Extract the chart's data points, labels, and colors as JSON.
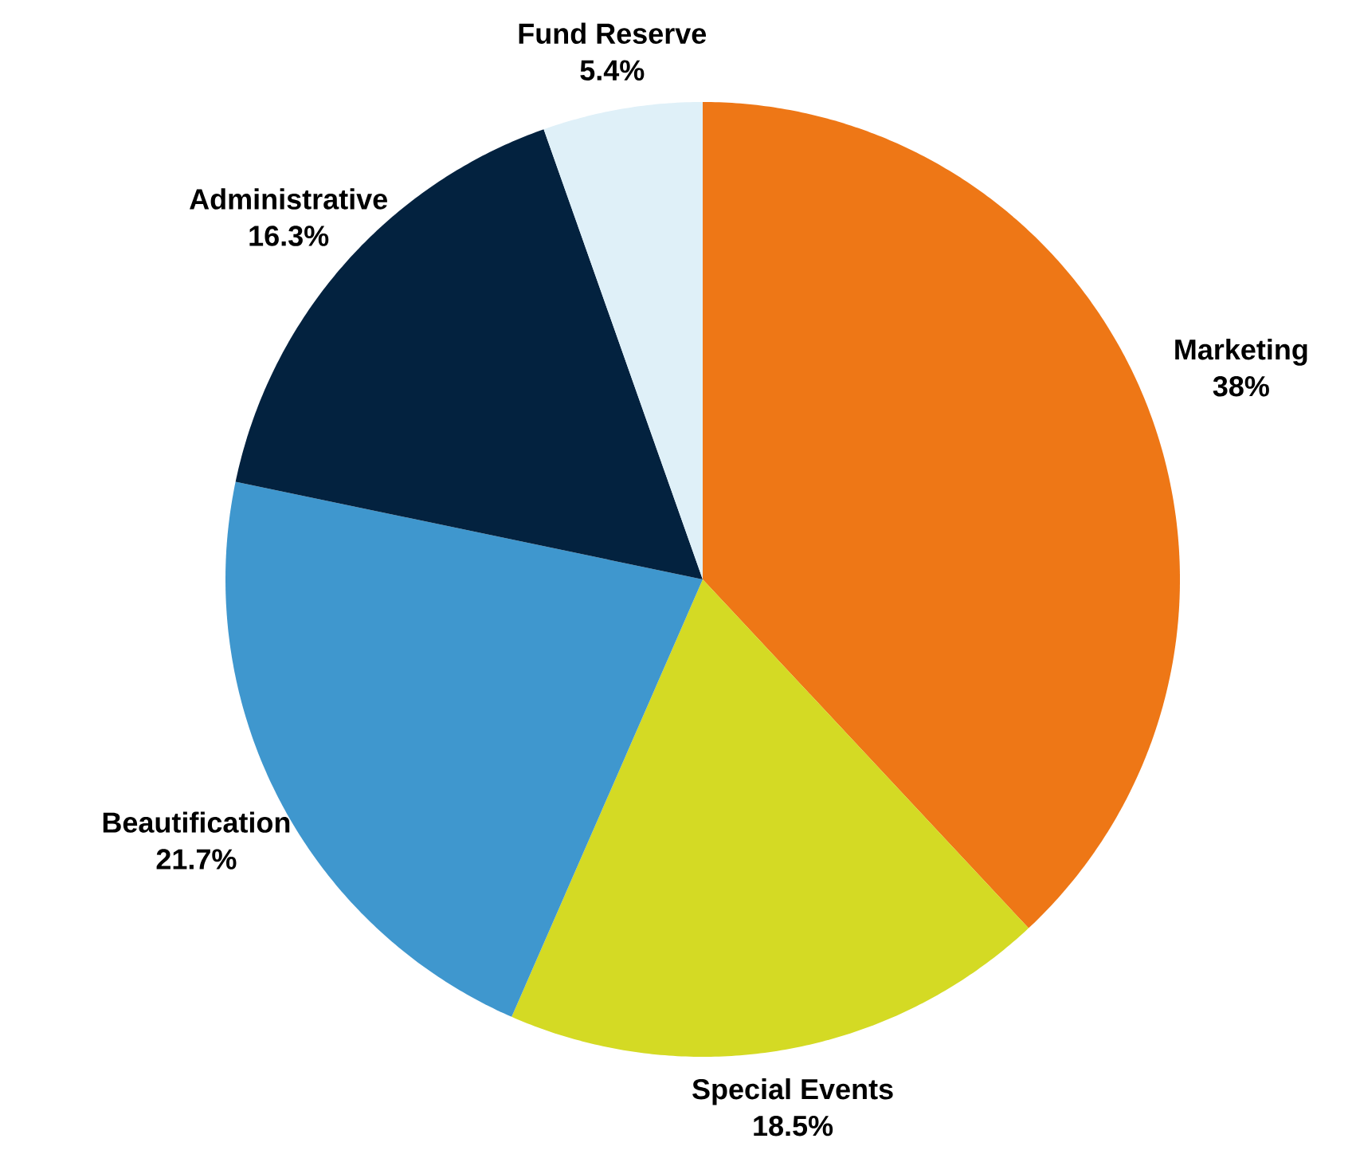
{
  "chart_data": {
    "type": "pie",
    "categories": [
      "Marketing",
      "Special Events",
      "Beautification",
      "Administrative",
      "Fund Reserve"
    ],
    "values": [
      38,
      18.5,
      21.7,
      16.3,
      5.4
    ],
    "value_labels": [
      "38%",
      "18.5%",
      "21.7%",
      "16.3%",
      "5.4%"
    ],
    "colors": [
      "#ee7716",
      "#d4da24",
      "#3f97ce",
      "#03223f",
      "#dff0f8"
    ]
  }
}
